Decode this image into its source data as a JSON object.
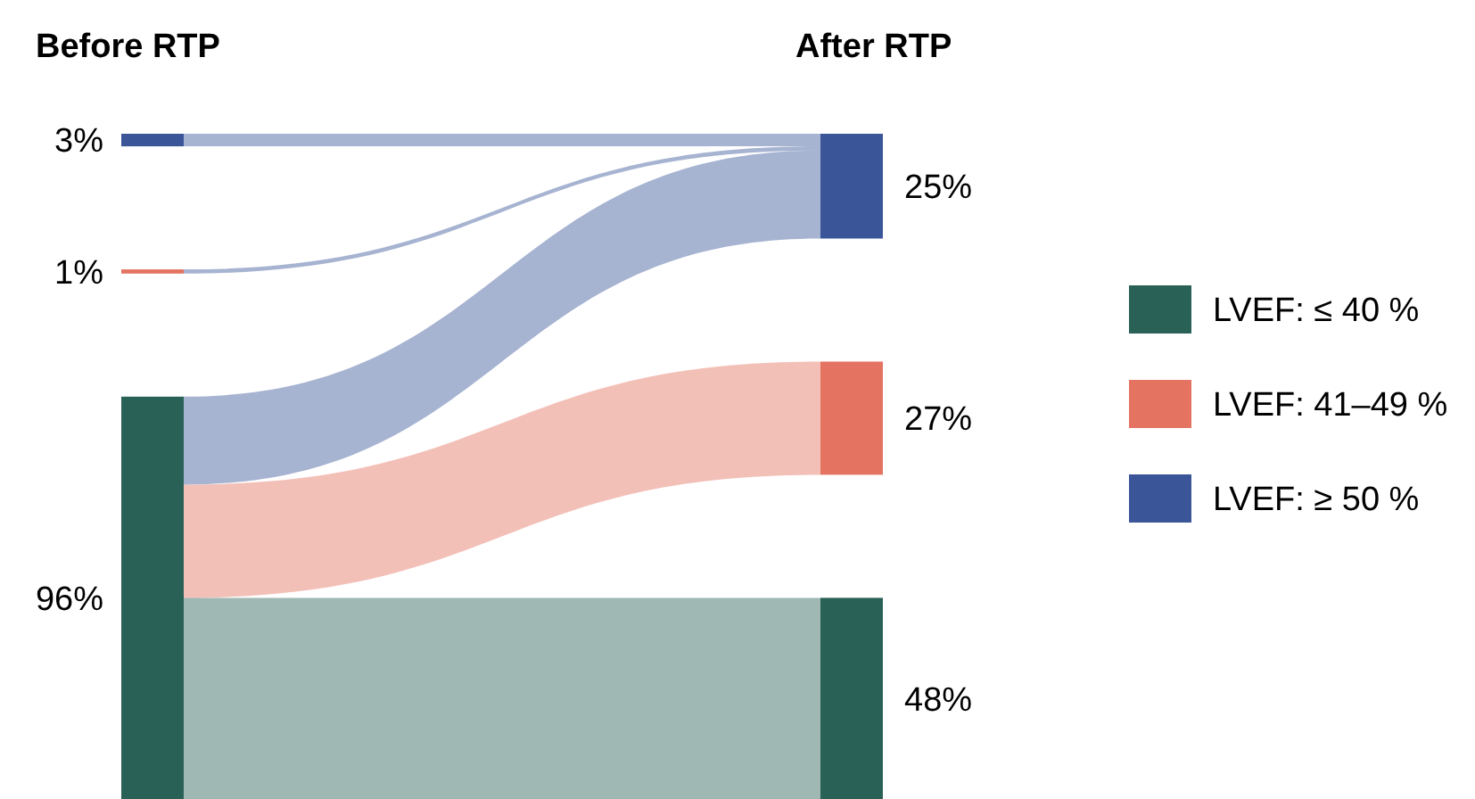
{
  "chart_data": {
    "type": "other",
    "categories": [
      "Before RTP",
      "After RTP"
    ],
    "legend": "right",
    "series": [
      {
        "name": "LVEF: ≤ 40 %",
        "color": "#2a6157",
        "values": [
          96,
          48
        ],
        "value_labels": [
          "96%",
          "48%"
        ]
      },
      {
        "name": "LVEF: 41–49 %",
        "color": "#e47361",
        "values": [
          1,
          27
        ],
        "value_labels": [
          "1%",
          "27%"
        ]
      },
      {
        "name": "LVEF: ≥ 50 %",
        "color": "#3a5699",
        "values": [
          3,
          25
        ],
        "value_labels": [
          "3%",
          "25%"
        ]
      }
    ]
  }
}
